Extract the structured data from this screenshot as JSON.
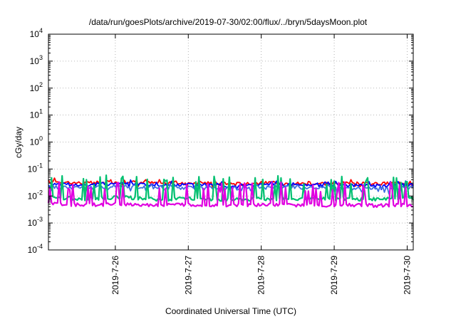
{
  "chart_data": {
    "type": "line",
    "title": "/data/run/goesPlots/archive/2019-07-30/02:00/flux/../bryn/5daysMoon.plot",
    "xlabel": "Coordinated Universal Time (UTC)",
    "ylabel": "cGy/day",
    "yscale": "log",
    "ylim": [
      0.0001,
      10000
    ],
    "y_ticks": [
      {
        "base": "10",
        "exp": "-4"
      },
      {
        "base": "10",
        "exp": "-3"
      },
      {
        "base": "10",
        "exp": "-2"
      },
      {
        "base": "10",
        "exp": "-1"
      },
      {
        "base": "10",
        "exp": "0"
      },
      {
        "base": "10",
        "exp": "1"
      },
      {
        "base": "10",
        "exp": "2"
      },
      {
        "base": "10",
        "exp": "3"
      },
      {
        "base": "10",
        "exp": "4"
      }
    ],
    "xlim": [
      "2019-07-25 02:00",
      "2019-07-30 02:00"
    ],
    "x_ticks": [
      "2019-7-26",
      "2019-7-27",
      "2019-7-28",
      "2019-7-29",
      "2019-7-30"
    ],
    "grid": true,
    "series_colors": [
      "#ff0000",
      "#0000ff",
      "#00c070",
      "#20a0a0",
      "#e000e0",
      "#4070e0"
    ],
    "series": [
      {
        "color": "#ff0000",
        "x": [
          0,
          12,
          24,
          36,
          48,
          60,
          72,
          84,
          96,
          108,
          120
        ],
        "y": [
          0.035,
          0.03,
          0.034,
          0.03,
          0.032,
          0.028,
          0.031,
          0.029,
          0.03,
          0.028,
          0.032
        ]
      },
      {
        "color": "#0000ff",
        "x": [
          0,
          12,
          24,
          36,
          48,
          60,
          72,
          84,
          96,
          108,
          120
        ],
        "y": [
          0.028,
          0.026,
          0.03,
          0.025,
          0.027,
          0.024,
          0.026,
          0.025,
          0.026,
          0.024,
          0.027
        ]
      },
      {
        "color": "#4070e0",
        "x": [
          0,
          12,
          24,
          36,
          48,
          60,
          72,
          84,
          96,
          108,
          120
        ],
        "y": [
          0.022,
          0.02,
          0.024,
          0.02,
          0.021,
          0.019,
          0.021,
          0.02,
          0.02,
          0.019,
          0.021
        ]
      },
      {
        "color": "#00c070",
        "x": [
          0,
          12,
          24,
          36,
          48,
          60,
          72,
          84,
          96,
          108,
          120
        ],
        "y": [
          0.009,
          0.008,
          0.009,
          0.0075,
          0.008,
          0.0075,
          0.008,
          0.0078,
          0.0078,
          0.0075,
          0.008
        ]
      },
      {
        "color": "#e000e0",
        "x": [
          0,
          12,
          24,
          36,
          48,
          60,
          72,
          84,
          96,
          108,
          120
        ],
        "y": [
          0.005,
          0.0048,
          0.005,
          0.0046,
          0.0048,
          0.0046,
          0.0047,
          0.0046,
          0.0047,
          0.0045,
          0.0047
        ]
      }
    ]
  }
}
